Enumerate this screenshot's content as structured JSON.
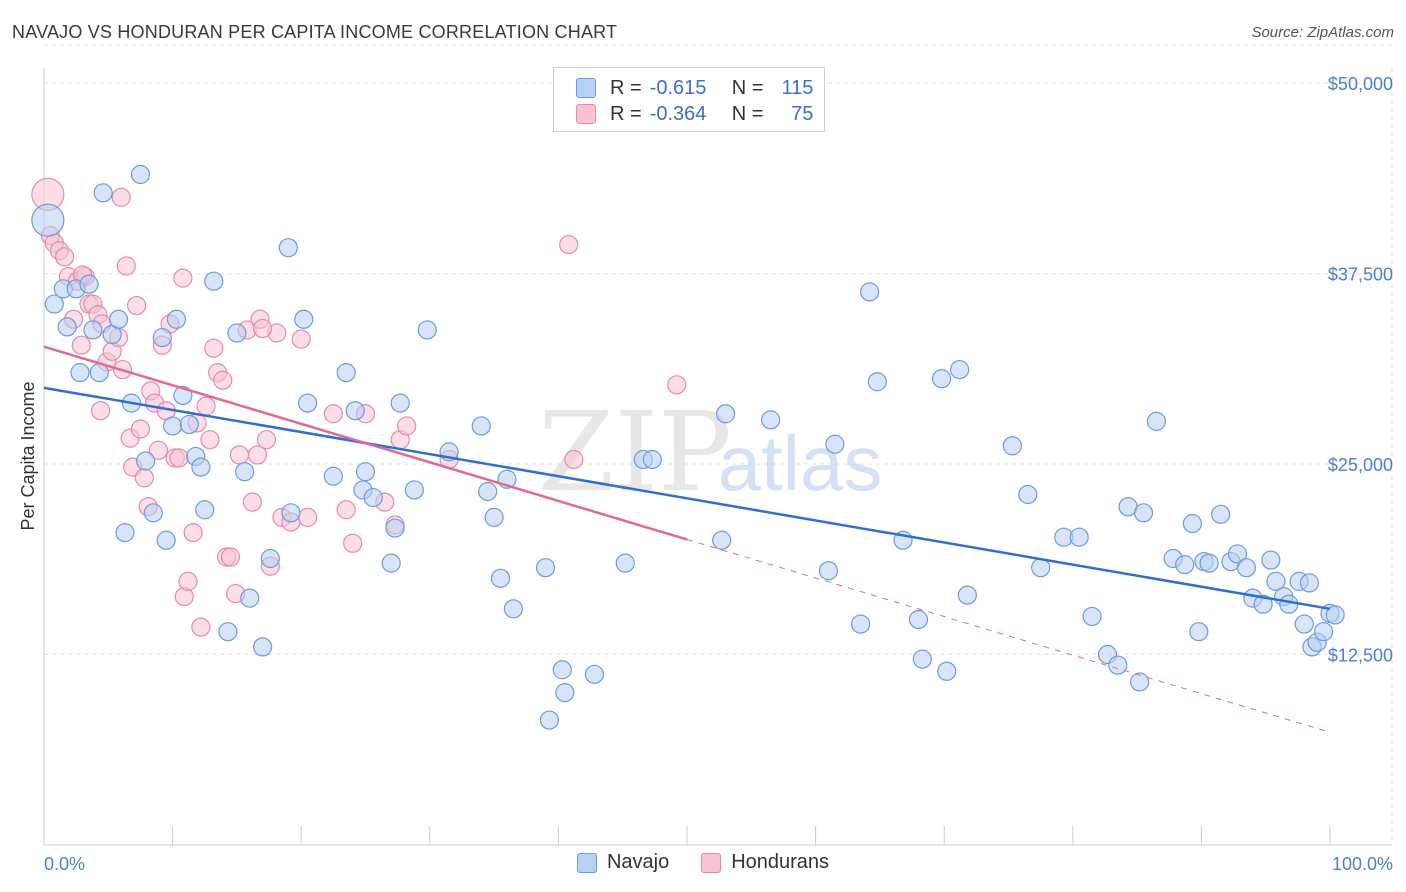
{
  "title": "NAVAJO VS HONDURAN PER CAPITA INCOME CORRELATION CHART",
  "source": "Source: ZipAtlas.com",
  "watermark": {
    "zip": "ZIP",
    "atlas": "atlas"
  },
  "legend": {
    "rows": [
      {
        "r_label": "R =",
        "r_value": "-0.615",
        "n_label": "N =",
        "n_value": "115"
      },
      {
        "r_label": "R =",
        "r_value": "-0.364",
        "n_label": "N =",
        "n_value": "75"
      }
    ]
  },
  "chart_data": {
    "type": "scatter",
    "title": "NAVAJO VS HONDURAN PER CAPITA INCOME CORRELATION CHART",
    "xlabel": "",
    "ylabel": "Per Capita Income",
    "xlim": [
      0,
      100
    ],
    "ylim": [
      0,
      52500
    ],
    "x_tick_labels": [
      "0.0%",
      "100.0%"
    ],
    "y_ticks": [
      12500,
      25000,
      37500,
      50000
    ],
    "y_tick_labels": [
      "$12,500",
      "$25,000",
      "$37,500",
      "$50,000"
    ],
    "grid": true,
    "legend_position": "bottom",
    "series": [
      {
        "name": "Navajo",
        "color": "#6b9be0",
        "fill": "#b8d0f3",
        "r": -0.615,
        "n": 115,
        "trend": {
          "x0": 0,
          "y0": 30000,
          "x1": 100,
          "y1": 15500,
          "dashed_from": null
        },
        "points": [
          [
            0.3,
            41000
          ],
          [
            0.8,
            35500
          ],
          [
            1.5,
            36500
          ],
          [
            1.8,
            34000
          ],
          [
            2.5,
            36500
          ],
          [
            2.8,
            31000
          ],
          [
            3.5,
            36800
          ],
          [
            3.8,
            33800
          ],
          [
            4.3,
            31000
          ],
          [
            4.6,
            42800
          ],
          [
            5.3,
            33500
          ],
          [
            5.8,
            34500
          ],
          [
            6.3,
            20500
          ],
          [
            6.8,
            29000
          ],
          [
            7.5,
            44000
          ],
          [
            7.9,
            25200
          ],
          [
            8.5,
            21800
          ],
          [
            9.2,
            33300
          ],
          [
            9.5,
            20000
          ],
          [
            10,
            27500
          ],
          [
            10.3,
            34500
          ],
          [
            10.8,
            29500
          ],
          [
            11.3,
            27600
          ],
          [
            11.8,
            25500
          ],
          [
            12.2,
            24800
          ],
          [
            12.5,
            22000
          ],
          [
            13.2,
            37000
          ],
          [
            14.3,
            14000
          ],
          [
            15,
            33600
          ],
          [
            15.6,
            24500
          ],
          [
            16,
            16200
          ],
          [
            17,
            13000
          ],
          [
            17.6,
            18800
          ],
          [
            19,
            39200
          ],
          [
            19.2,
            21800
          ],
          [
            20.2,
            34500
          ],
          [
            20.5,
            29000
          ],
          [
            22.5,
            24200
          ],
          [
            23.5,
            31000
          ],
          [
            24.2,
            28500
          ],
          [
            24.8,
            23300
          ],
          [
            25,
            24500
          ],
          [
            25.6,
            22800
          ],
          [
            27,
            18500
          ],
          [
            27.3,
            20800
          ],
          [
            27.7,
            29000
          ],
          [
            28.8,
            23300
          ],
          [
            29.8,
            33800
          ],
          [
            31.5,
            25800
          ],
          [
            34,
            27500
          ],
          [
            34.5,
            23200
          ],
          [
            35,
            21500
          ],
          [
            35.5,
            17500
          ],
          [
            36,
            24000
          ],
          [
            36.5,
            15500
          ],
          [
            39,
            18200
          ],
          [
            39.3,
            8200
          ],
          [
            40.3,
            11500
          ],
          [
            40.5,
            10000
          ],
          [
            42.8,
            11200
          ],
          [
            45.2,
            18500
          ],
          [
            46.6,
            25300
          ],
          [
            47.3,
            25300
          ],
          [
            52.7,
            20000
          ],
          [
            53,
            28300
          ],
          [
            56.5,
            27900
          ],
          [
            61,
            18000
          ],
          [
            61.5,
            26300
          ],
          [
            63.5,
            14500
          ],
          [
            64.2,
            36300
          ],
          [
            64.8,
            30400
          ],
          [
            66.8,
            20000
          ],
          [
            68,
            14800
          ],
          [
            68.3,
            12200
          ],
          [
            69.8,
            30600
          ],
          [
            70.2,
            11400
          ],
          [
            71.2,
            31200
          ],
          [
            71.8,
            16400
          ],
          [
            75.3,
            26200
          ],
          [
            76.5,
            23000
          ],
          [
            77.5,
            18200
          ],
          [
            79.3,
            20200
          ],
          [
            80.5,
            20200
          ],
          [
            81.5,
            15000
          ],
          [
            82.7,
            12500
          ],
          [
            83.5,
            11800
          ],
          [
            85.2,
            10700
          ],
          [
            84.3,
            22200
          ],
          [
            85.5,
            21800
          ],
          [
            86.5,
            27800
          ],
          [
            87.8,
            18800
          ],
          [
            88.7,
            18400
          ],
          [
            89.3,
            21100
          ],
          [
            89.8,
            14000
          ],
          [
            90.2,
            18600
          ],
          [
            90.6,
            18500
          ],
          [
            91.5,
            21700
          ],
          [
            92.3,
            18600
          ],
          [
            92.8,
            19100
          ],
          [
            93.5,
            18200
          ],
          [
            94,
            16200
          ],
          [
            94.8,
            15800
          ],
          [
            95.4,
            18700
          ],
          [
            95.8,
            17300
          ],
          [
            96.4,
            16300
          ],
          [
            96.8,
            15800
          ],
          [
            97.6,
            17300
          ],
          [
            98.4,
            17200
          ],
          [
            98,
            14500
          ],
          [
            98.6,
            13000
          ],
          [
            99,
            13300
          ],
          [
            99.5,
            14000
          ],
          [
            100,
            15200
          ],
          [
            100.4,
            15100
          ]
        ]
      },
      {
        "name": "Hondurans",
        "color": "#e68aa8",
        "fill": "#f8c3d3",
        "r": -0.364,
        "n": 75,
        "trend": {
          "x0": 0,
          "y0": 32700,
          "x1": 100,
          "y1": 7400,
          "dashed_from": 50
        },
        "points": [
          [
            0.3,
            42700
          ],
          [
            0.5,
            40000
          ],
          [
            0.8,
            39500
          ],
          [
            1.2,
            39000
          ],
          [
            1.6,
            38600
          ],
          [
            1.9,
            37300
          ],
          [
            2.3,
            34500
          ],
          [
            2.6,
            37000
          ],
          [
            2.9,
            32800
          ],
          [
            3.2,
            37300
          ],
          [
            3.5,
            35500
          ],
          [
            3.8,
            35500
          ],
          [
            4.2,
            34800
          ],
          [
            4.5,
            34200
          ],
          [
            4.4,
            28500
          ],
          [
            4.9,
            31700
          ],
          [
            5.3,
            32400
          ],
          [
            5.8,
            33300
          ],
          [
            6.1,
            31200
          ],
          [
            6.4,
            38000
          ],
          [
            6.7,
            26700
          ],
          [
            6.9,
            24800
          ],
          [
            7.2,
            35400
          ],
          [
            7.5,
            27300
          ],
          [
            7.8,
            24100
          ],
          [
            8.1,
            22200
          ],
          [
            8.3,
            29800
          ],
          [
            8.6,
            29000
          ],
          [
            8.9,
            25900
          ],
          [
            9.2,
            32800
          ],
          [
            9.5,
            28500
          ],
          [
            9.8,
            34200
          ],
          [
            10.2,
            25400
          ],
          [
            10.5,
            25400
          ],
          [
            10.9,
            16300
          ],
          [
            11.2,
            17300
          ],
          [
            11.6,
            20500
          ],
          [
            11.9,
            27700
          ],
          [
            12.2,
            14300
          ],
          [
            12.6,
            28800
          ],
          [
            12.9,
            26600
          ],
          [
            13.2,
            32600
          ],
          [
            13.5,
            31000
          ],
          [
            13.9,
            30500
          ],
          [
            14.2,
            18900
          ],
          [
            14.5,
            18900
          ],
          [
            14.9,
            16500
          ],
          [
            15.2,
            25600
          ],
          [
            15.8,
            33800
          ],
          [
            16.2,
            22500
          ],
          [
            16.6,
            25600
          ],
          [
            16.8,
            34500
          ],
          [
            17.3,
            26600
          ],
          [
            17.6,
            18300
          ],
          [
            18.1,
            33600
          ],
          [
            18.5,
            21500
          ],
          [
            19.2,
            21200
          ],
          [
            20,
            33200
          ],
          [
            20.5,
            21500
          ],
          [
            22.5,
            28300
          ],
          [
            23.5,
            22000
          ],
          [
            24,
            19800
          ],
          [
            25,
            28300
          ],
          [
            26.5,
            22500
          ],
          [
            27.3,
            21000
          ],
          [
            27.7,
            26600
          ],
          [
            28.2,
            27500
          ],
          [
            31.5,
            25300
          ],
          [
            40.8,
            39400
          ],
          [
            41.2,
            25300
          ],
          [
            49.2,
            30200
          ],
          [
            6.0,
            42500
          ],
          [
            3.0,
            37400
          ],
          [
            10.8,
            37200
          ],
          [
            17.0,
            33900
          ]
        ]
      }
    ]
  }
}
